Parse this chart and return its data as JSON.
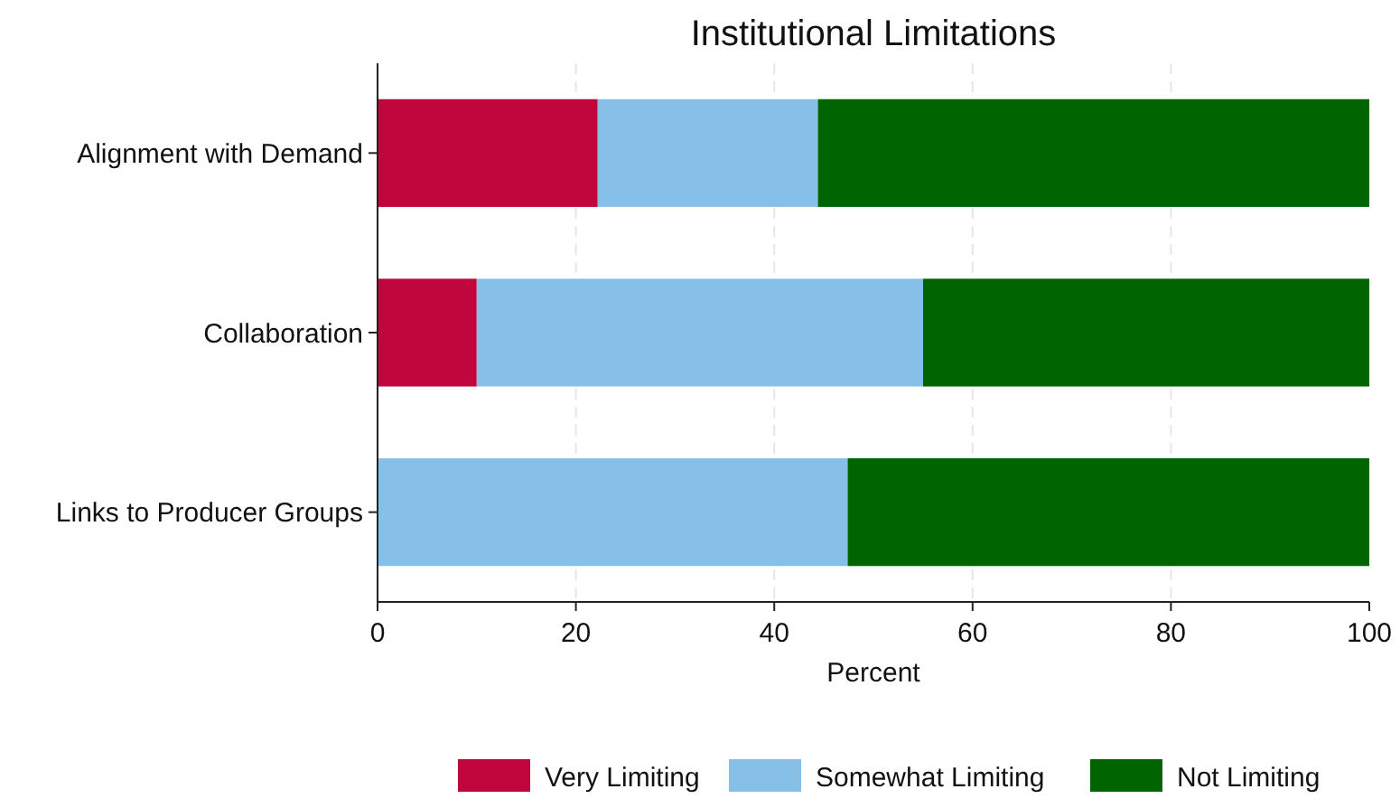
{
  "chart_data": {
    "type": "bar",
    "orientation": "horizontal",
    "stacked": true,
    "title": "Institutional Limitations",
    "xlabel": "Percent",
    "categories": [
      "Alignment with Demand",
      "Collaboration",
      "Links to Producer Groups"
    ],
    "series": [
      {
        "name": "Very Limiting",
        "color": "#c0063c",
        "values": [
          22.2,
          10,
          0
        ]
      },
      {
        "name": "Somewhat Limiting",
        "color": "#86c0e8",
        "values": [
          22.2,
          45,
          47.4
        ]
      },
      {
        "name": "Not Limiting",
        "color": "#006400",
        "values": [
          55.6,
          45,
          52.6
        ]
      }
    ],
    "xlim": [
      0,
      100
    ],
    "xticks": [
      0,
      20,
      40,
      60,
      80,
      100
    ],
    "grid": "x",
    "legend": "bottom"
  }
}
